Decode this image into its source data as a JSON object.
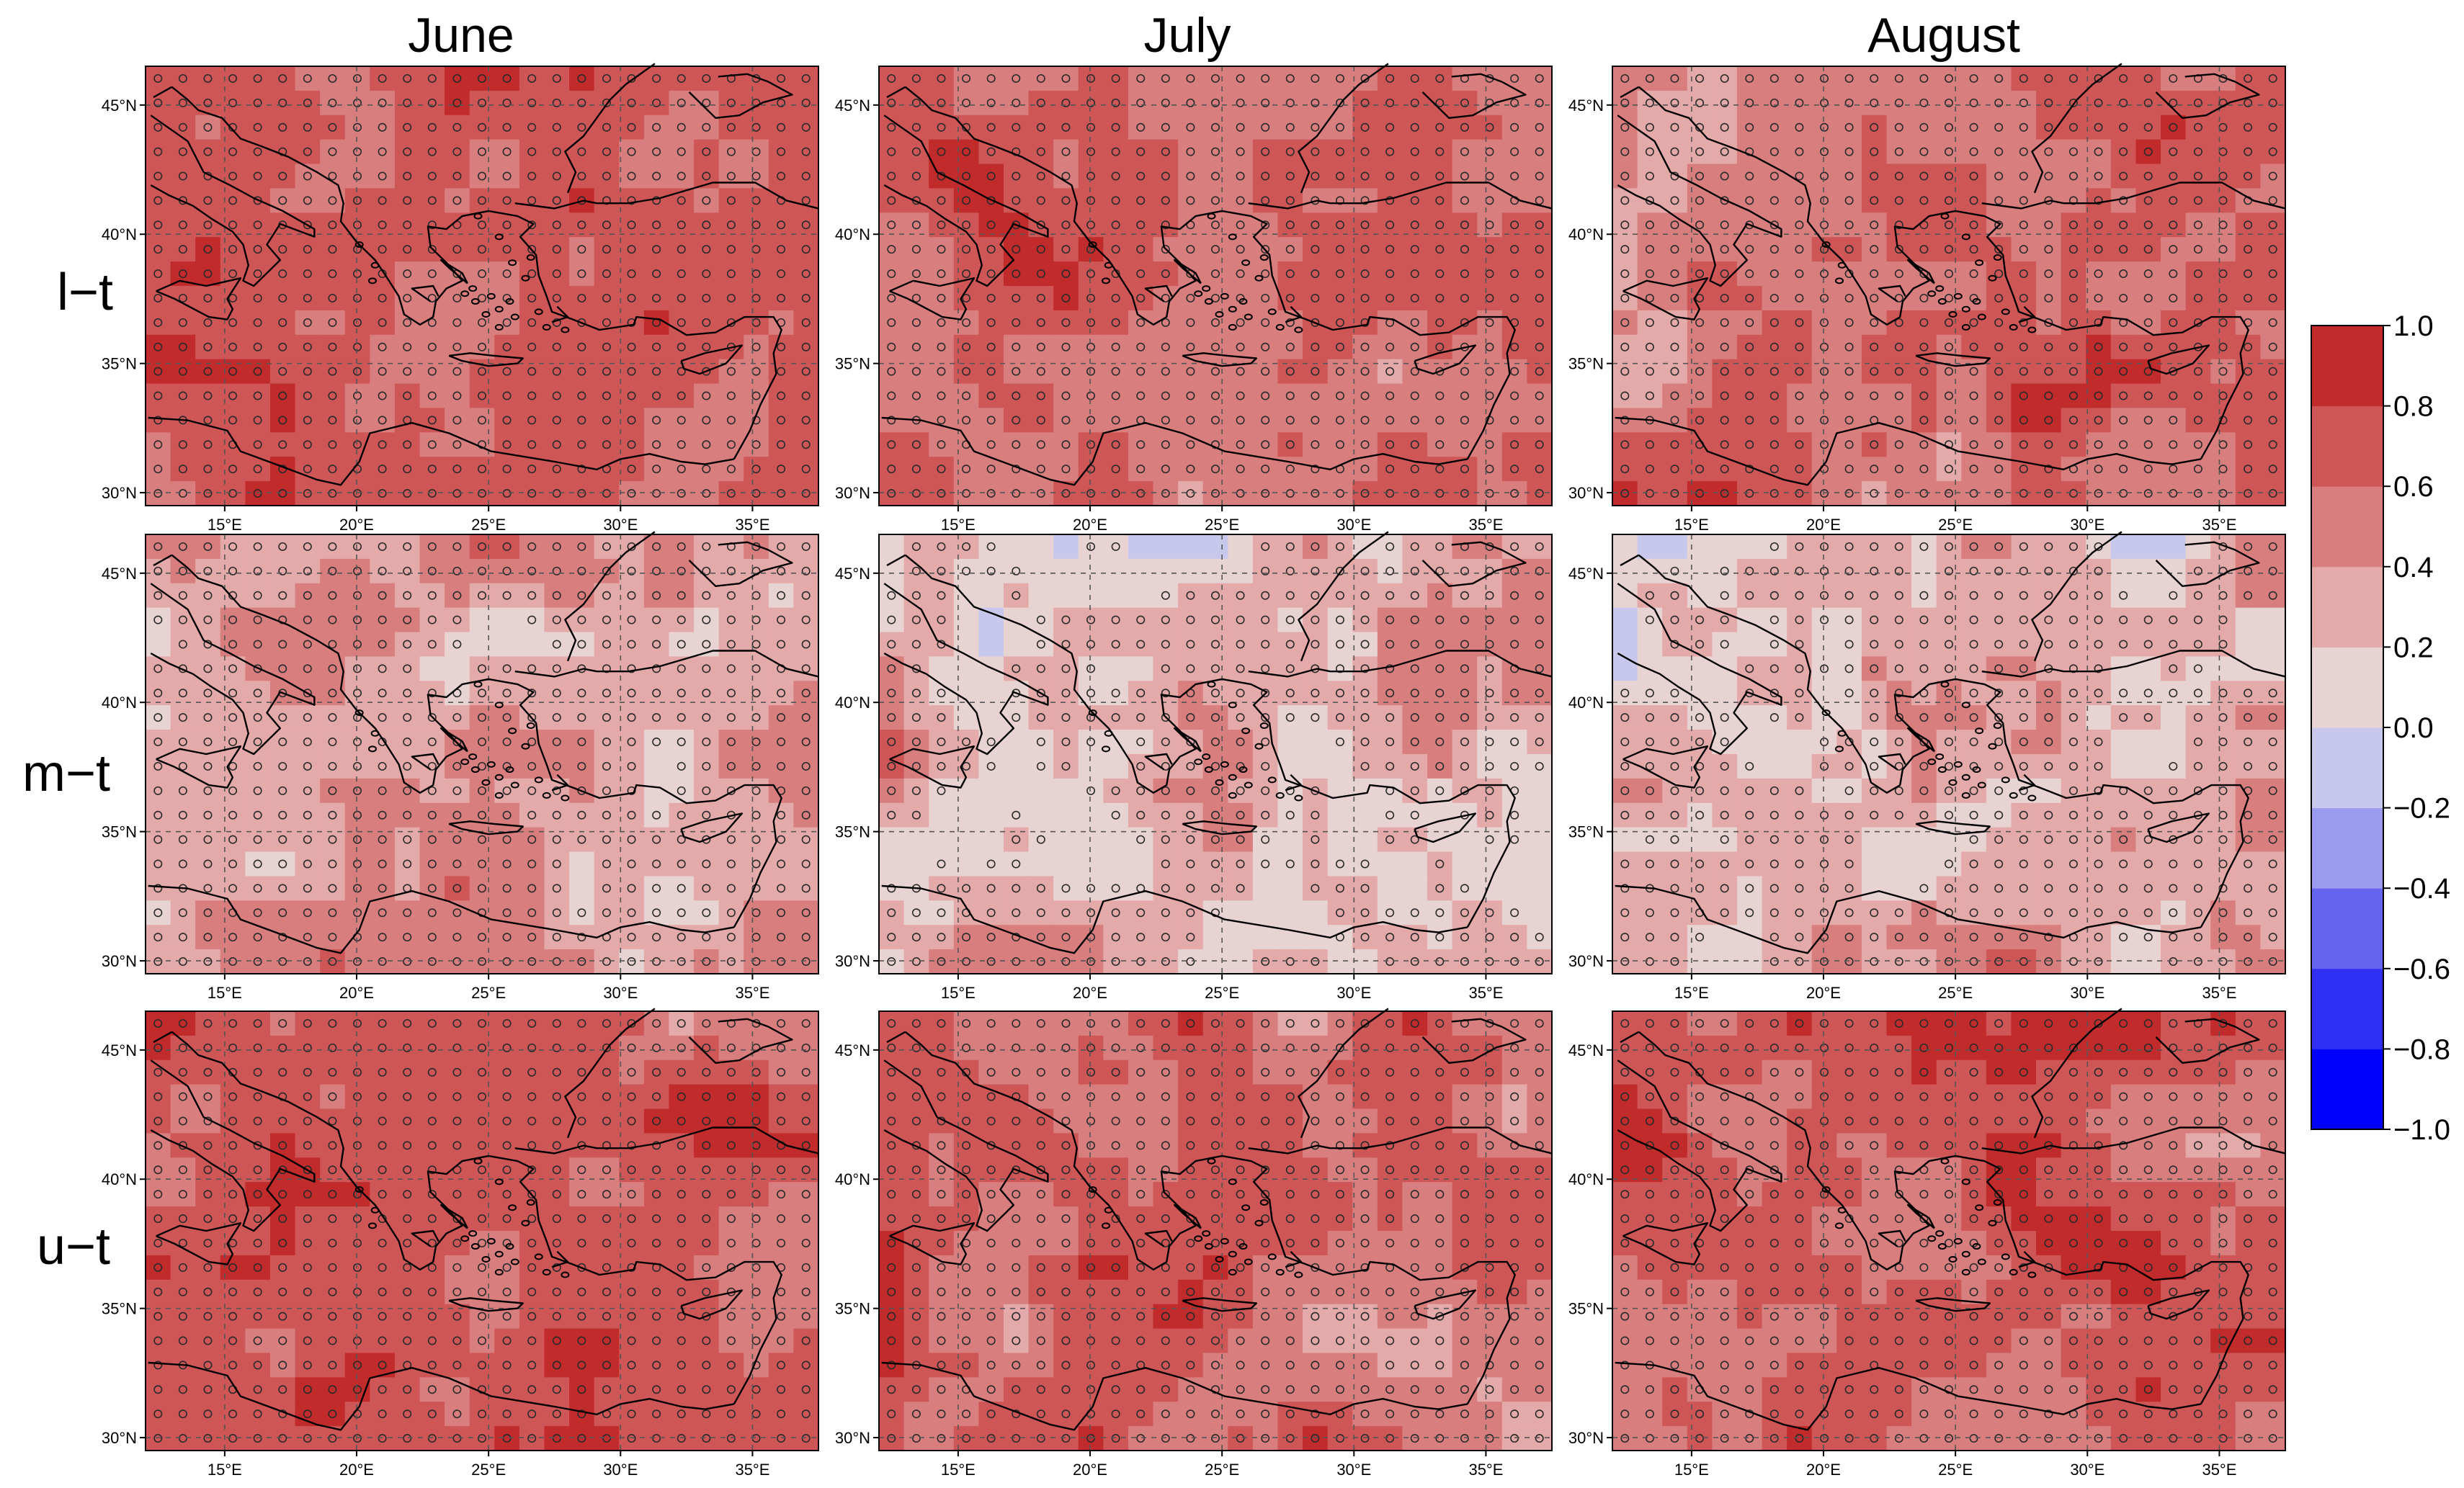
{
  "figure": {
    "column_titles": [
      "June",
      "July",
      "August"
    ],
    "row_labels": [
      "l−t",
      "m−t",
      "u−t"
    ]
  },
  "chart_data": {
    "type": "heatmap",
    "xlim": [
      12,
      37.5
    ],
    "ylim": [
      29.5,
      46.5
    ],
    "xticks": [
      15,
      20,
      25,
      30,
      35
    ],
    "yticks": [
      30,
      35,
      40,
      45
    ],
    "xtick_labels": [
      "15°E",
      "20°E",
      "25°E",
      "30°E",
      "35°E"
    ],
    "ytick_labels": [
      "30°N",
      "35°N",
      "40°N",
      "45°N"
    ],
    "grid": true,
    "stippling": "circles",
    "colorbar": {
      "position": "right",
      "min": -1.0,
      "max": 1.0,
      "bounds": [
        -1.0,
        -0.8,
        -0.6,
        -0.4,
        -0.2,
        0.0,
        0.2,
        0.4,
        0.6,
        0.8,
        1.0
      ],
      "tick_labels": [
        "1.0",
        "0.8",
        "0.6",
        "0.4",
        "0.2",
        "0.0",
        "−0.2",
        "−0.4",
        "−0.6",
        "−0.8",
        "−1.0"
      ],
      "colors": [
        "#0000ff",
        "#2f2ff5",
        "#6464f0",
        "#9a9aee",
        "#c8c8ec",
        "#e8d3d3",
        "#e4a9a9",
        "#d97e7e",
        "#cf5656",
        "#c12b2b"
      ]
    },
    "panels": [
      {
        "row": "l−t",
        "column": "June",
        "mean": 0.7,
        "min": 0.35,
        "max": 0.92
      },
      {
        "row": "l−t",
        "column": "July",
        "mean": 0.62,
        "min": 0.25,
        "max": 0.92
      },
      {
        "row": "l−t",
        "column": "August",
        "mean": 0.58,
        "min": 0.15,
        "max": 0.92
      },
      {
        "row": "m−t",
        "column": "June",
        "mean": 0.35,
        "min": -0.05,
        "max": 0.72
      },
      {
        "row": "m−t",
        "column": "July",
        "mean": 0.3,
        "min": -0.1,
        "max": 0.72
      },
      {
        "row": "m−t",
        "column": "August",
        "mean": 0.28,
        "min": -0.15,
        "max": 0.75
      },
      {
        "row": "u−t",
        "column": "June",
        "mean": 0.66,
        "min": 0.25,
        "max": 0.92
      },
      {
        "row": "u−t",
        "column": "July",
        "mean": 0.62,
        "min": 0.2,
        "max": 0.95
      },
      {
        "row": "u−t",
        "column": "August",
        "mean": 0.66,
        "min": 0.25,
        "max": 0.95
      }
    ]
  }
}
